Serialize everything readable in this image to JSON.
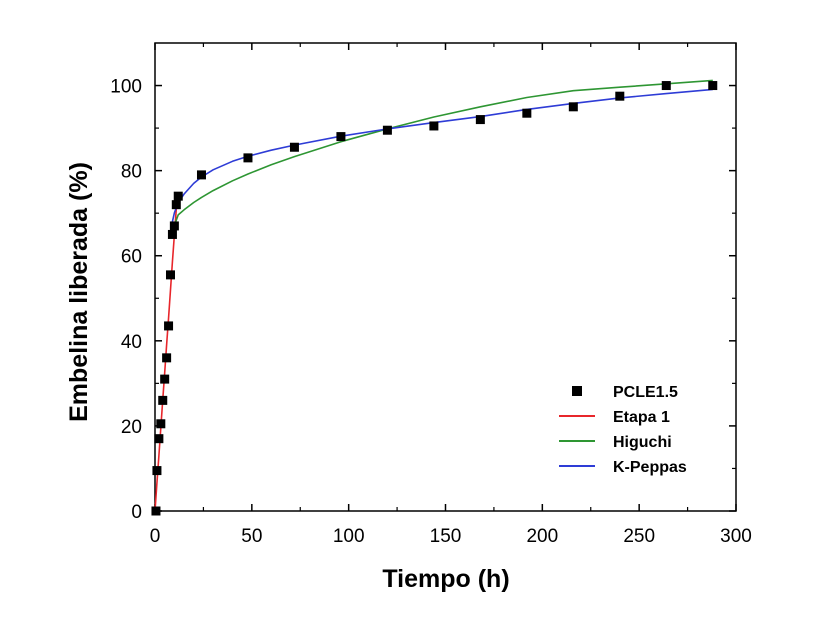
{
  "chart_data": {
    "type": "scatter",
    "xlabel": "Tiempo (h)",
    "ylabel": "Embelina liberada (%)",
    "xlim": [
      0,
      300
    ],
    "ylim": [
      0,
      110
    ],
    "x_ticks": [
      0,
      50,
      100,
      150,
      200,
      250,
      300
    ],
    "y_ticks": [
      0,
      20,
      40,
      60,
      80,
      100
    ],
    "grid": false,
    "legend_position": "bottom-right",
    "series": [
      {
        "name": "PCLE1.5",
        "kind": "markers",
        "color": "#000000",
        "x": [
          0.5,
          1,
          2,
          3,
          4,
          5,
          6,
          7,
          8,
          9,
          10,
          11,
          12,
          24,
          48,
          72,
          96,
          120,
          144,
          168,
          192,
          216,
          240,
          264,
          288
        ],
        "y": [
          0,
          9.5,
          17,
          20.5,
          26,
          31,
          36,
          43.5,
          55.5,
          65,
          67,
          72,
          74,
          79,
          83,
          85.5,
          88,
          89.5,
          90.5,
          92,
          93.5,
          95,
          97.5,
          100,
          100
        ]
      },
      {
        "name": "Etapa 1",
        "kind": "line",
        "color": "#e8262b",
        "x": [
          0,
          1,
          2,
          3,
          4,
          5,
          6,
          7,
          8,
          9,
          10,
          11
        ],
        "y": [
          0,
          6.5,
          13,
          19.5,
          26,
          32.5,
          39,
          45.5,
          52,
          58.5,
          65,
          71
        ]
      },
      {
        "name": "Higuchi",
        "kind": "line",
        "color": "#2e9633",
        "x": [
          9,
          10,
          12,
          15,
          20,
          24,
          30,
          40,
          48,
          60,
          72,
          96,
          120,
          144,
          168,
          192,
          216,
          240,
          264,
          288
        ],
        "y": [
          65.5,
          67.1,
          69.6,
          70.8,
          72.5,
          73.7,
          75.3,
          77.6,
          79.2,
          81.4,
          83.3,
          86.8,
          89.8,
          92.6,
          95,
          97.2,
          98.8,
          99.6,
          100.4,
          101.2
        ]
      },
      {
        "name": "K-Peppas",
        "kind": "line",
        "color": "#2e3cd6",
        "x": [
          9,
          10,
          12,
          15,
          20,
          24,
          30,
          40,
          48,
          60,
          72,
          96,
          120,
          144,
          168,
          192,
          216,
          240,
          264,
          288
        ],
        "y": [
          68,
          70.1,
          72.5,
          74.5,
          77,
          78.5,
          80.2,
          82.2,
          83.4,
          84.8,
          86,
          88.1,
          89.8,
          91.3,
          92.7,
          94.4,
          95.8,
          97.1,
          98.1,
          99.1
        ]
      }
    ]
  }
}
